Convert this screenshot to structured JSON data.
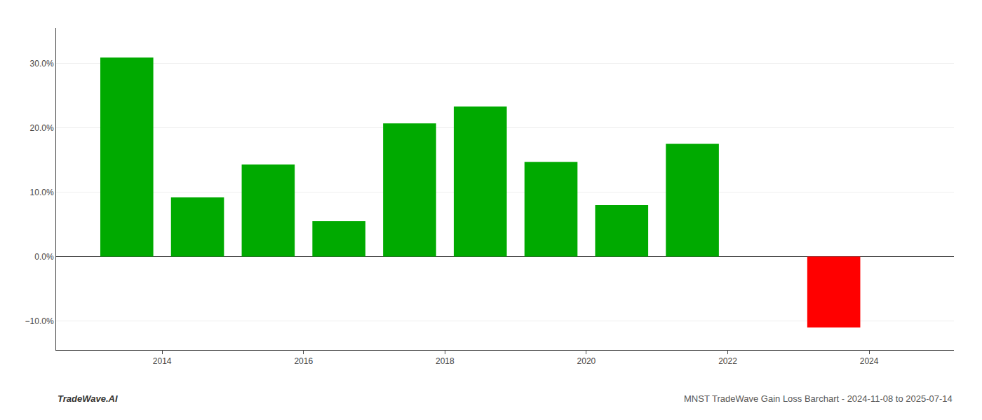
{
  "chart_data": {
    "type": "bar",
    "x": [
      2013.5,
      2014.5,
      2015.5,
      2016.5,
      2017.5,
      2018.5,
      2019.5,
      2020.5,
      2021.5,
      2023.5
    ],
    "values": [
      0.309,
      0.092,
      0.143,
      0.055,
      0.207,
      0.233,
      0.147,
      0.08,
      0.175,
      -0.11
    ],
    "colors": [
      "#00aa00",
      "#00aa00",
      "#00aa00",
      "#00aa00",
      "#00aa00",
      "#00aa00",
      "#00aa00",
      "#00aa00",
      "#00aa00",
      "#ff0000"
    ],
    "xlim": [
      2012.5,
      2025.2
    ],
    "xticks": [
      2014,
      2016,
      2018,
      2020,
      2022,
      2024
    ],
    "ylim": [
      -0.145,
      0.355
    ],
    "yticks": [
      {
        "value": -0.1,
        "label": "−10.0%"
      },
      {
        "value": 0.0,
        "label": "0.0%"
      },
      {
        "value": 0.1,
        "label": "10.0%"
      },
      {
        "value": 0.2,
        "label": "20.0%"
      },
      {
        "value": 0.3,
        "label": "30.0%"
      }
    ],
    "grid": true,
    "annotations": [
      "TradeWave.AI",
      "MNST TradeWave Gain Loss Barchart - 2024-11-08 to 2025-07-14"
    ]
  }
}
